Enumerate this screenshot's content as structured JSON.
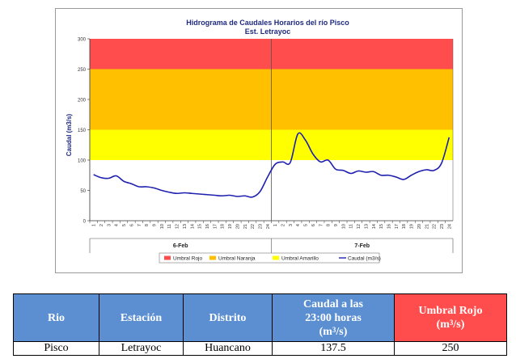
{
  "chart_data": {
    "type": "line",
    "title": "Hidrograma de Caudales Horarios del río Pisco",
    "subtitle": "Est. Letrayoc",
    "ylabel": "Caudal  (m3/s)",
    "ylim": [
      0,
      300
    ],
    "yticks": [
      0,
      50,
      100,
      150,
      200,
      250,
      300
    ],
    "hour_ticks": [
      "1",
      "2",
      "3",
      "4",
      "5",
      "6",
      "7",
      "8",
      "9",
      "10",
      "11",
      "12",
      "13",
      "14",
      "15",
      "16",
      "17",
      "18",
      "19",
      "20",
      "21",
      "22",
      "23",
      "24"
    ],
    "days": [
      "6-Feb",
      "7-Feb"
    ],
    "bands": [
      {
        "name": "Umbral Rojo",
        "from": 250,
        "to": 300,
        "color": "#ff4d4d"
      },
      {
        "name": "Umbral Naranja",
        "from": 150,
        "to": 250,
        "color": "#ffc000"
      },
      {
        "name": "Umbral Amarillo",
        "from": 100,
        "to": 150,
        "color": "#ffff00"
      }
    ],
    "legend": [
      "Umbral Rojo",
      "Umbral Naranja",
      "Umbral Amarillo",
      "Caudal (m3/s)"
    ],
    "legend_position": "bottom",
    "series": [
      {
        "name": "Caudal (m3/s)",
        "color": "#1f1fb0",
        "values": [
          76,
          71,
          70,
          74,
          65,
          61,
          56,
          56,
          54,
          50,
          47,
          45,
          46,
          45,
          44,
          43,
          42,
          41,
          42,
          40,
          41,
          39,
          48,
          72,
          93,
          97,
          96,
          143,
          133,
          110,
          97,
          100,
          85,
          83,
          78,
          82,
          80,
          81,
          75,
          75,
          72,
          68,
          75,
          81,
          84,
          83,
          95,
          137.5
        ]
      }
    ]
  },
  "table": {
    "headers": {
      "rio": "Rio",
      "estacion": "Estación",
      "distrito": "Distrito",
      "caudal_line1": "Caudal a las",
      "caudal_line2": "23:00 horas",
      "caudal_unit_open": "(m",
      "caudal_unit_sup": "3",
      "caudal_unit_close": "/s)",
      "umbral_line1": "Umbral Rojo",
      "umbral_unit_open": "(m",
      "umbral_unit_sup": "3",
      "umbral_unit_close": "/s)"
    },
    "row": {
      "rio": "Pisco",
      "estacion": "Letrayoc",
      "distrito": "Huancano",
      "caudal": "137.5",
      "umbral": "250"
    }
  }
}
